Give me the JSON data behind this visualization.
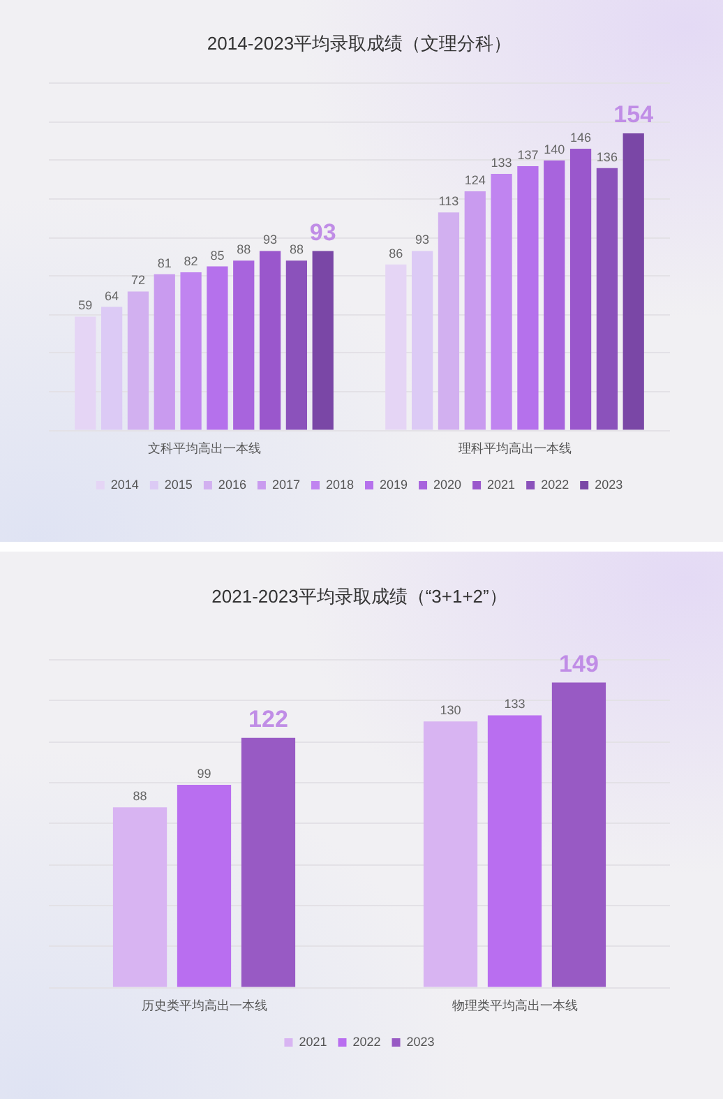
{
  "chart_data": [
    {
      "type": "bar",
      "title": "2014-2023平均录取成绩（文理分科）",
      "categories": [
        "文科平均高出一本线",
        "理科平均高出一本线"
      ],
      "series": [
        {
          "name": "2014",
          "color": "#e5d5f5",
          "values": [
            59,
            86
          ]
        },
        {
          "name": "2015",
          "color": "#dccaf5",
          "values": [
            64,
            93
          ]
        },
        {
          "name": "2016",
          "color": "#d2b0f0",
          "values": [
            72,
            113
          ]
        },
        {
          "name": "2017",
          "color": "#c99bef",
          "values": [
            81,
            124
          ]
        },
        {
          "name": "2018",
          "color": "#c084f0",
          "values": [
            82,
            133
          ]
        },
        {
          "name": "2019",
          "color": "#b571ec",
          "values": [
            85,
            137
          ]
        },
        {
          "name": "2020",
          "color": "#a864dd",
          "values": [
            88,
            140
          ]
        },
        {
          "name": "2021",
          "color": "#9a57cc",
          "values": [
            93,
            146
          ]
        },
        {
          "name": "2022",
          "color": "#8b52bb",
          "values": [
            88,
            136
          ]
        },
        {
          "name": "2023",
          "color": "#7a47a6",
          "values": [
            93,
            154
          ]
        }
      ],
      "ylim": [
        0,
        180
      ],
      "yticks": [
        {
          "value": 0,
          "label": null
        },
        {
          "value": 20,
          "label": null
        },
        {
          "value": 40,
          "label": null
        },
        {
          "value": 60,
          "label": null
        },
        {
          "value": 80,
          "label": null
        },
        {
          "value": 100,
          "label": null
        },
        {
          "value": 120,
          "label": null
        },
        {
          "value": 140,
          "label": null
        },
        {
          "value": 160,
          "label": null
        },
        {
          "value": 180,
          "label": null
        }
      ],
      "tick_labels": "x",
      "grid": "y",
      "legend": "bottom",
      "data_labels": true
    },
    {
      "type": "bar",
      "title": "2021-2023平均录取成绩（“3+1+2”）",
      "categories": [
        "历史类平均高出一本线",
        "物理类平均高出一本线"
      ],
      "series": [
        {
          "name": "2021",
          "color": "#d8b4f2",
          "values": [
            88,
            130
          ]
        },
        {
          "name": "2022",
          "color": "#b96ef0",
          "values": [
            99,
            133
          ]
        },
        {
          "name": "2023",
          "color": "#985ac4",
          "values": [
            122,
            149
          ]
        }
      ],
      "ylim": [
        0,
        160
      ],
      "yticks": [
        {
          "value": 0,
          "label": null
        },
        {
          "value": 20,
          "label": null
        },
        {
          "value": 40,
          "label": null
        },
        {
          "value": 60,
          "label": null
        },
        {
          "value": 80,
          "label": null
        },
        {
          "value": 100,
          "label": null
        },
        {
          "value": 120,
          "label": null
        },
        {
          "value": 140,
          "label": null
        },
        {
          "value": 160,
          "label": null
        }
      ],
      "tick_labels": "x",
      "grid": "y",
      "legend": "bottom",
      "data_labels": true
    }
  ]
}
